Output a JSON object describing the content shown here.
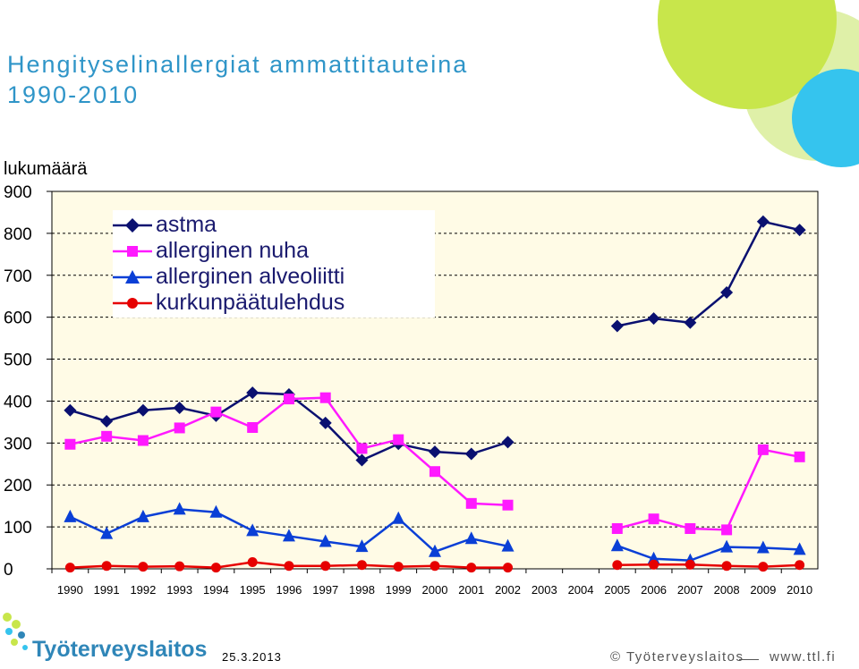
{
  "header": {
    "title_line1": "Hengityselinallergiat ammattitauteina",
    "title_line2": "1990-2010"
  },
  "colors": {
    "title": "#2f95c8",
    "plot_bg": "#fffbe6",
    "astma": "#0a1070",
    "nuha": "#ff19ff",
    "alveoliitti": "#0a3fd6",
    "kurkunpaa": "#e60000",
    "deco_green": "#c8e64b",
    "deco_lightgreen": "#dff0a8",
    "deco_blue": "#35c4ee"
  },
  "footer": {
    "date": "25.3.2013",
    "copyright": "© Työterveyslaitos",
    "site": "www.ttl.fi",
    "logo_text": "Työterveyslaitos"
  },
  "chart_data": {
    "type": "line",
    "ylabel": "lukumäärä",
    "xlabel": "",
    "ylim": [
      0,
      900
    ],
    "yticks": [
      0,
      100,
      200,
      300,
      400,
      500,
      600,
      700,
      800,
      900
    ],
    "categories": [
      "1990",
      "1991",
      "1992",
      "1993",
      "1994",
      "1995",
      "1996",
      "1997",
      "1998",
      "1999",
      "2000",
      "2001",
      "2002",
      "2003",
      "2004",
      "2005",
      "2006",
      "2007",
      "2008",
      "2009",
      "2010"
    ],
    "grid": "horizontal dashed",
    "legend_position": "top-left",
    "series": [
      {
        "name": "astma",
        "marker": "diamond",
        "color": "#0a1070",
        "values": [
          378,
          352,
          378,
          384,
          365,
          420,
          416,
          348,
          259,
          298,
          279,
          274,
          302,
          null,
          null,
          579,
          597,
          587,
          659,
          828,
          808
        ]
      },
      {
        "name": "allerginen nuha",
        "marker": "square",
        "color": "#ff19ff",
        "values": [
          297,
          316,
          306,
          336,
          374,
          337,
          405,
          408,
          287,
          308,
          232,
          156,
          152,
          null,
          null,
          96,
          119,
          96,
          93,
          284,
          267
        ]
      },
      {
        "name": "allerginen alveoliitti",
        "marker": "triangle",
        "color": "#0a3fd6",
        "values": [
          124,
          84,
          124,
          142,
          135,
          91,
          78,
          65,
          53,
          120,
          41,
          72,
          54,
          null,
          null,
          55,
          24,
          20,
          52,
          50,
          46
        ]
      },
      {
        "name": "kurkunpäätulehdus",
        "marker": "circle",
        "color": "#e60000",
        "values": [
          3,
          7,
          5,
          6,
          3,
          16,
          7,
          7,
          9,
          5,
          7,
          3,
          3,
          null,
          null,
          9,
          10,
          10,
          7,
          5,
          9
        ]
      }
    ]
  }
}
